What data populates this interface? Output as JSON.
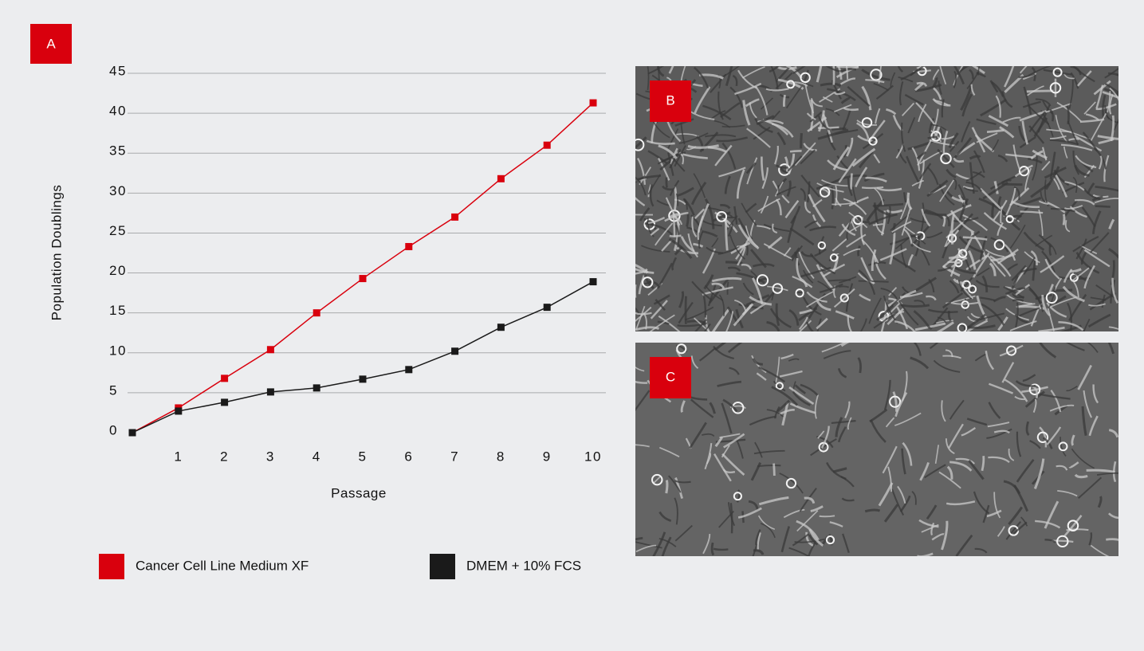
{
  "chart_data": {
    "type": "line",
    "panel_label": "A",
    "ylabel": "Population Doublings",
    "xlabel": "Passage",
    "x": [
      0,
      1,
      2,
      3,
      4,
      5,
      6,
      7,
      8,
      9,
      10
    ],
    "xlim": [
      0,
      10
    ],
    "xticks": [
      1,
      2,
      3,
      4,
      5,
      6,
      7,
      8,
      9,
      10
    ],
    "ylim": [
      0,
      45
    ],
    "yticks": [
      0,
      5,
      10,
      15,
      20,
      25,
      30,
      35,
      40,
      45
    ],
    "grid": true,
    "legend": "bottom",
    "series": [
      {
        "name": "Cancer Cell Line Medium XF",
        "color": "#d9000d",
        "values": [
          0,
          3.1,
          6.8,
          10.4,
          15.0,
          19.3,
          23.3,
          27.0,
          31.8,
          36.0,
          41.3
        ]
      },
      {
        "name": "DMEM + 10% FCS",
        "color": "#1a1a1a",
        "values": [
          0,
          2.7,
          3.8,
          5.1,
          5.6,
          6.7,
          7.9,
          10.2,
          13.2,
          15.7,
          18.9
        ]
      }
    ]
  },
  "images": [
    {
      "label": "B"
    },
    {
      "label": "C"
    }
  ]
}
